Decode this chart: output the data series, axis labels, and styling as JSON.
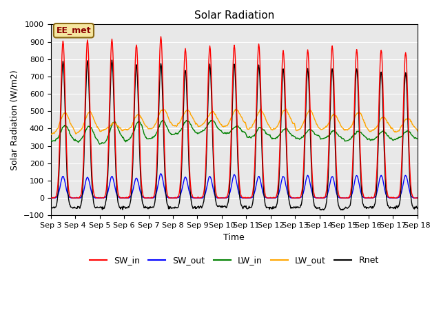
{
  "title": "Solar Radiation",
  "ylabel": "Solar Radiation (W/m2)",
  "xlabel": "Time",
  "ylim": [
    -100,
    1000
  ],
  "annotation": "EE_met",
  "tick_labels": [
    "Sep 3",
    "Sep 4",
    "Sep 5",
    "Sep 6",
    "Sep 7",
    "Sep 8",
    "Sep 9",
    "Sep 10",
    "Sep 11",
    "Sep 12",
    "Sep 13",
    "Sep 14",
    "Sep 15",
    "Sep 16",
    "Sep 17",
    "Sep 18"
  ],
  "n_days": 15,
  "legend_entries": [
    "SW_in",
    "SW_out",
    "LW_in",
    "LW_out",
    "Rnet"
  ],
  "legend_colors": [
    "red",
    "blue",
    "green",
    "orange",
    "black"
  ],
  "bg_color": "#e8e8e8",
  "fig_color": "#ffffff",
  "sw_in_peaks": [
    905,
    910,
    915,
    885,
    930,
    860,
    875,
    880,
    885,
    850,
    855,
    875,
    855,
    855,
    840
  ],
  "sw_out_peaks": [
    125,
    120,
    125,
    115,
    140,
    120,
    125,
    135,
    125,
    125,
    130,
    125,
    130,
    130,
    130
  ],
  "lw_in_base": [
    330,
    325,
    325,
    330,
    350,
    370,
    380,
    370,
    350,
    345,
    345,
    340,
    335,
    335,
    340
  ],
  "lw_in_day_bump": [
    85,
    90,
    110,
    110,
    90,
    75,
    65,
    45,
    55,
    55,
    50,
    45,
    50,
    50,
    45
  ],
  "lw_out_base": [
    375,
    375,
    380,
    385,
    400,
    415,
    415,
    410,
    395,
    395,
    390,
    385,
    385,
    385,
    380
  ],
  "lw_out_day_bump": [
    110,
    120,
    55,
    100,
    115,
    90,
    80,
    100,
    110,
    115,
    110,
    100,
    110,
    80,
    80
  ],
  "rnet_night": [
    -55,
    -55,
    -55,
    -55,
    -55,
    -55,
    -50,
    -50,
    -55,
    -55,
    -55,
    -65,
    -55,
    -55,
    -55
  ],
  "rnet_peaks": [
    840,
    845,
    850,
    825,
    830,
    795,
    820,
    820,
    820,
    800,
    800,
    810,
    800,
    780,
    775
  ]
}
